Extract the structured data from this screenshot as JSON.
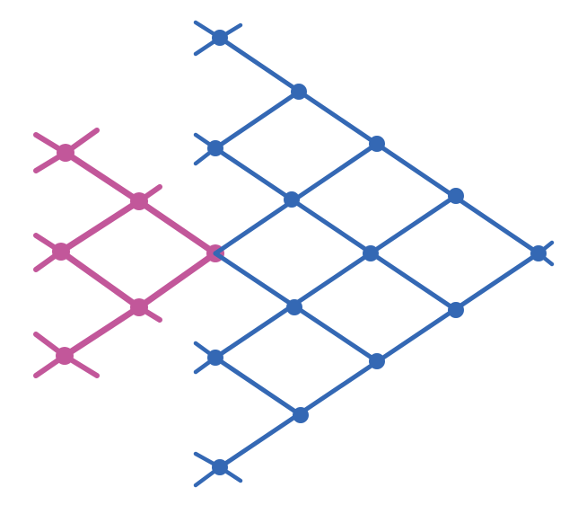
{
  "colors": {
    "background": "#ffffff",
    "pink": "#c2579a",
    "blue": "#3468b4"
  },
  "networks": [
    {
      "name": "pink-lattice",
      "color": "#c2579a",
      "nodes": [
        {
          "id": "p1"
        },
        {
          "id": "p2"
        },
        {
          "id": "p3"
        },
        {
          "id": "p4"
        },
        {
          "id": "p5"
        },
        {
          "id": "p6"
        },
        {
          "id": "p7"
        }
      ],
      "edges": [
        [
          "p1",
          "p2"
        ],
        [
          "p2",
          "p3"
        ],
        [
          "p2",
          "p4"
        ],
        [
          "p3",
          "p5"
        ],
        [
          "p4",
          "p5"
        ],
        [
          "p5",
          "p6"
        ],
        [
          "p4",
          "p6"
        ],
        [
          "p6",
          "p7"
        ]
      ],
      "stubs": [
        "p1",
        "p3",
        "p6",
        "p7"
      ]
    },
    {
      "name": "blue-lattice",
      "color": "#3468b4",
      "nodes": [
        {
          "id": "b1"
        },
        {
          "id": "b2"
        },
        {
          "id": "b3"
        },
        {
          "id": "b4"
        },
        {
          "id": "b5"
        },
        {
          "id": "b6"
        },
        {
          "id": "b7"
        },
        {
          "id": "b8"
        },
        {
          "id": "b9"
        },
        {
          "id": "b10"
        },
        {
          "id": "b11"
        },
        {
          "id": "b12"
        },
        {
          "id": "b13"
        },
        {
          "id": "b14"
        },
        {
          "id": "b15"
        },
        {
          "id": "b16"
        }
      ],
      "edges": [
        [
          "b1",
          "b2"
        ],
        [
          "b2",
          "b3"
        ],
        [
          "b2",
          "b4"
        ],
        [
          "b3",
          "b5"
        ],
        [
          "b4",
          "b5"
        ],
        [
          "b4",
          "b6"
        ],
        [
          "b5",
          "b7"
        ],
        [
          "b5",
          "b8"
        ],
        [
          "b6",
          "b7"
        ],
        [
          "b6",
          "b9"
        ],
        [
          "b7",
          "b10"
        ],
        [
          "b8",
          "b10"
        ],
        [
          "b9",
          "b11"
        ],
        [
          "b9",
          "b12"
        ],
        [
          "b10",
          "b12"
        ],
        [
          "b10",
          "b13"
        ],
        [
          "b11",
          "b14"
        ],
        [
          "b12",
          "b15"
        ],
        [
          "b13",
          "b15"
        ],
        [
          "b14",
          "b16"
        ],
        [
          "b15",
          "b14"
        ]
      ],
      "stubs": [
        "b1",
        "b3",
        "b11",
        "b16"
      ]
    }
  ]
}
